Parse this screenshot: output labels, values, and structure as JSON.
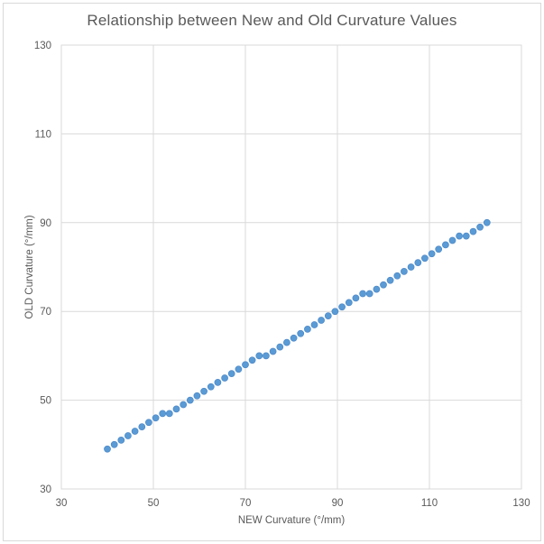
{
  "chart_data": {
    "type": "scatter",
    "title": "Relationship between New and Old Curvature Values",
    "xlabel": "NEW Curvature (°/mm)",
    "ylabel": "OLD Curvature (°/mm)",
    "xlim": [
      30,
      130
    ],
    "ylim": [
      30,
      130
    ],
    "xticks": [
      30,
      50,
      70,
      90,
      110,
      130
    ],
    "yticks": [
      30,
      50,
      70,
      90,
      110,
      130
    ],
    "grid": true,
    "legend": false,
    "series_name": "curvature-conversion",
    "points": [
      [
        40,
        39
      ],
      [
        41.5,
        40
      ],
      [
        43,
        41
      ],
      [
        44.5,
        42
      ],
      [
        46,
        43
      ],
      [
        47.5,
        44
      ],
      [
        49,
        45
      ],
      [
        50.5,
        46
      ],
      [
        52,
        47
      ],
      [
        53.5,
        47
      ],
      [
        55,
        48
      ],
      [
        56.5,
        49
      ],
      [
        58,
        50
      ],
      [
        59.5,
        51
      ],
      [
        61,
        52
      ],
      [
        62.5,
        53
      ],
      [
        64,
        54
      ],
      [
        65.5,
        55
      ],
      [
        67,
        56
      ],
      [
        68.5,
        57
      ],
      [
        70,
        58
      ],
      [
        71.5,
        59
      ],
      [
        73,
        60
      ],
      [
        74.5,
        60
      ],
      [
        76,
        61
      ],
      [
        77.5,
        62
      ],
      [
        79,
        63
      ],
      [
        80.5,
        64
      ],
      [
        82,
        65
      ],
      [
        83.5,
        66
      ],
      [
        85,
        67
      ],
      [
        86.5,
        68
      ],
      [
        88,
        69
      ],
      [
        89.5,
        70
      ],
      [
        91,
        71
      ],
      [
        92.5,
        72
      ],
      [
        94,
        73
      ],
      [
        95.5,
        74
      ],
      [
        97,
        74
      ],
      [
        98.5,
        75
      ],
      [
        100,
        76
      ],
      [
        101.5,
        77
      ],
      [
        103,
        78
      ],
      [
        104.5,
        79
      ],
      [
        106,
        80
      ],
      [
        107.5,
        81
      ],
      [
        109,
        82
      ],
      [
        110.5,
        83
      ],
      [
        112,
        84
      ],
      [
        113.5,
        85
      ],
      [
        115,
        86
      ],
      [
        116.5,
        87
      ],
      [
        118,
        87
      ],
      [
        119.5,
        88
      ],
      [
        121,
        89
      ],
      [
        122.5,
        90
      ]
    ],
    "colors": {
      "marker": "#5B9BD5",
      "marker_edge": "#4E8AC9",
      "gridline": "#D9D9D9",
      "plot_border": "#D9D9D9",
      "chart_border": "#D9D9D9",
      "text": "#595959",
      "background": "#FFFFFF"
    }
  }
}
